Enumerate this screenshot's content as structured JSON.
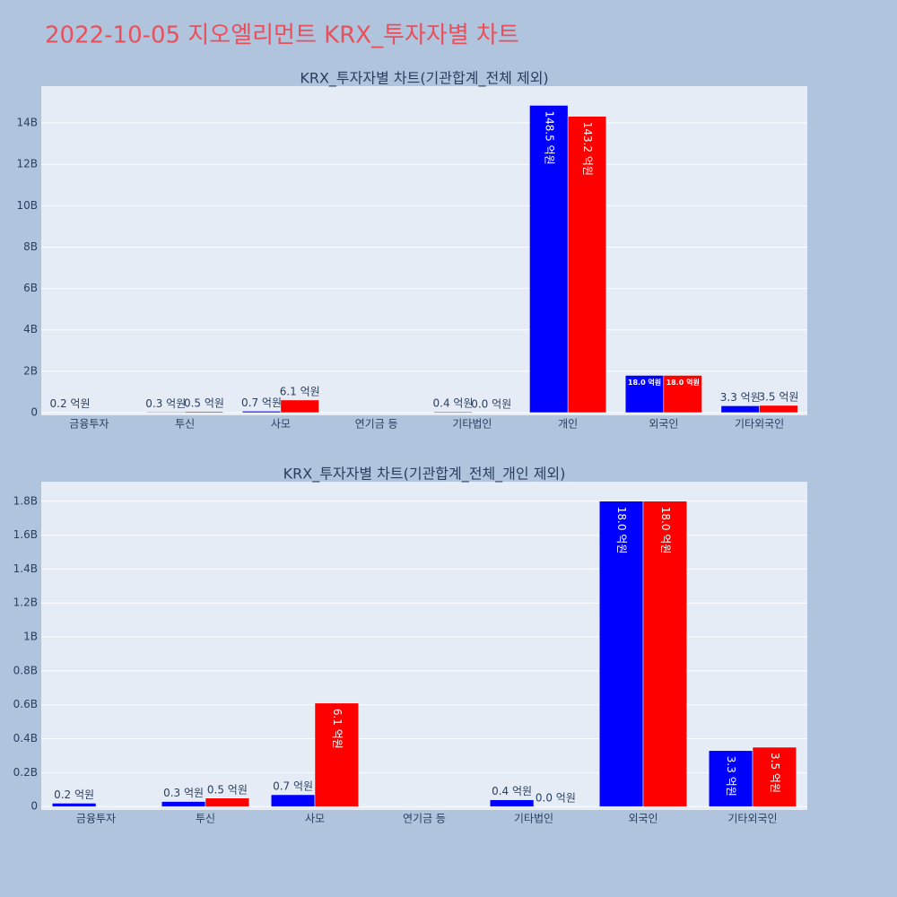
{
  "title": "2022-10-05 지오엘리먼트 KRX_투자자별 차트",
  "chart_data": [
    {
      "type": "bar",
      "title": "KRX_투자자별 차트(기관합계_전체 제외)",
      "categories": [
        "금융투자",
        "투신",
        "사모",
        "연기금 등",
        "기타법인",
        "개인",
        "외국인",
        "기타외국인"
      ],
      "series": [
        {
          "color": "#0000ff",
          "values": [
            20000000,
            30000000,
            70000000,
            null,
            40000000,
            14850000000,
            1800000000,
            330000000
          ],
          "value_labels": [
            "0.2 억원",
            "0.3 억원",
            "0.7 억원",
            null,
            "0.4 억원",
            "148.5 억원",
            "18.0 억원",
            "3.3 억원"
          ]
        },
        {
          "color": "#ff0000",
          "values": [
            null,
            50000000,
            610000000,
            null,
            0,
            14320000000,
            1800000000,
            350000000
          ],
          "value_labels": [
            null,
            "0.5 억원",
            "6.1 억원",
            null,
            "0.0 억원",
            "143.2 억원",
            "18.0 억원",
            "3.5 억원"
          ]
        }
      ],
      "ylim": [
        -130000000,
        15780000000
      ],
      "yticks": [
        0,
        {
          "value": 2000000000,
          "label": "2B"
        },
        {
          "value": 4000000000,
          "label": "4B"
        },
        {
          "value": 6000000000,
          "label": "6B"
        },
        {
          "value": 8000000000,
          "label": "8B"
        },
        {
          "value": 10000000000,
          "label": "10B"
        },
        {
          "value": 12000000000,
          "label": "12B"
        },
        {
          "value": 14000000000,
          "label": "14B"
        }
      ],
      "grid": true
    },
    {
      "type": "bar",
      "title": "KRX_투자자별 차트(기관합계_전체_개인 제외)",
      "categories": [
        "금융투자",
        "투신",
        "사모",
        "연기금 등",
        "기타법인",
        "외국인",
        "기타외국인"
      ],
      "series": [
        {
          "color": "#0000ff",
          "values": [
            20000000,
            30000000,
            70000000,
            null,
            40000000,
            1800000000,
            330000000
          ],
          "value_labels": [
            "0.2 억원",
            "0.3 억원",
            "0.7 억원",
            null,
            "0.4 억원",
            "18.0 억원",
            "3.3 억원"
          ]
        },
        {
          "color": "#ff0000",
          "values": [
            null,
            50000000,
            610000000,
            null,
            0,
            1800000000,
            350000000
          ],
          "value_labels": [
            null,
            "0.5 억원",
            "6.1 억원",
            null,
            "0.0 억원",
            "18.0 억원",
            "3.5 억원"
          ]
        }
      ],
      "ylim": [
        -20000000,
        1915000000
      ],
      "yticks": [
        0,
        {
          "value": 200000000,
          "label": "0.2B"
        },
        {
          "value": 400000000,
          "label": "0.4B"
        },
        {
          "value": 600000000,
          "label": "0.6B"
        },
        {
          "value": 800000000,
          "label": "0.8B"
        },
        {
          "value": 1000000000,
          "label": "1B"
        },
        {
          "value": 1200000000,
          "label": "1.2B"
        },
        {
          "value": 1400000000,
          "label": "1.4B"
        },
        {
          "value": 1600000000,
          "label": "1.6B"
        },
        {
          "value": 1800000000,
          "label": "1.8B"
        }
      ],
      "grid": true
    }
  ]
}
